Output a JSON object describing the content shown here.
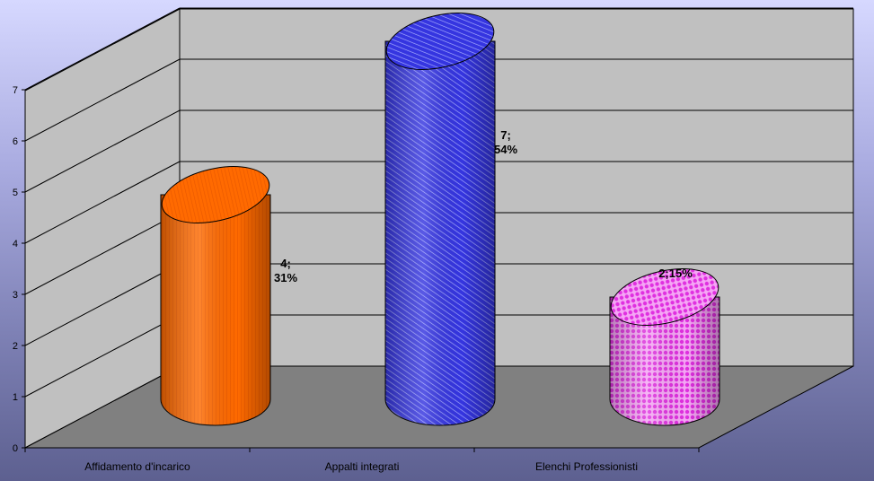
{
  "chart_data": {
    "type": "bar",
    "style": "3d-cylinder",
    "categories": [
      "Affidamento d'incarico",
      "Appalti integrati",
      "Elenchi Professionisti"
    ],
    "values": [
      4,
      7,
      2
    ],
    "percents": [
      "31%",
      "54%",
      "15%"
    ],
    "data_labels": [
      [
        "4;",
        "31%"
      ],
      [
        "7;",
        "54%"
      ],
      [
        "2;15%"
      ]
    ],
    "ylim": [
      0,
      7
    ],
    "yticks": [
      "0",
      "1",
      "2",
      "3",
      "4",
      "5",
      "6",
      "7"
    ],
    "grid": true,
    "legend": "none",
    "colors": {
      "bars": [
        "#ff6a00",
        "#3535e0",
        "#e040e0"
      ],
      "bar_tops": [
        "#e06000",
        "#2020c8",
        "#d030d0"
      ],
      "walls": "#c0c0c0",
      "floor": "#808080"
    }
  }
}
